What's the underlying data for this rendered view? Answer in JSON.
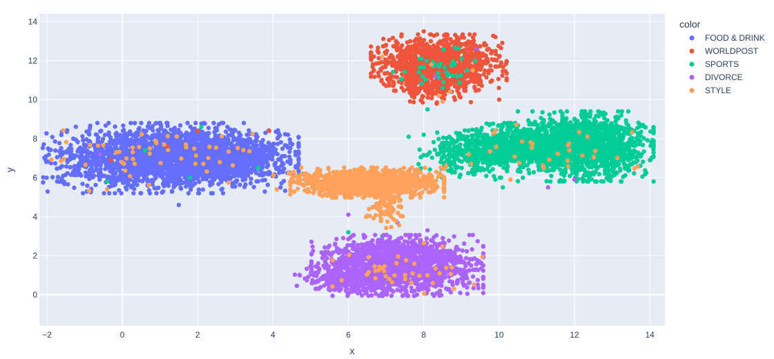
{
  "chart_data": {
    "type": "scatter",
    "title": "",
    "xlabel": "x",
    "ylabel": "y",
    "xlim": [
      -2.2,
      14.4
    ],
    "ylim": [
      -1.6,
      14.4
    ],
    "x_ticks": [
      -2,
      0,
      2,
      4,
      6,
      8,
      10,
      12,
      14
    ],
    "y_ticks": [
      0,
      2,
      4,
      6,
      8,
      10,
      12,
      14
    ],
    "grid": true,
    "legend_placement": "top-right",
    "legend_title": "color",
    "plot_bg": "#E5ECF6",
    "series": [
      {
        "name": "FOOD & DRINK",
        "color": "#636EFA",
        "clusters": [
          {
            "cx": 1.2,
            "cy": 7.0,
            "sx": 1.45,
            "sy": 0.75,
            "n": 2300
          },
          {
            "cx": 2.9,
            "cy": 7.1,
            "sx": 0.65,
            "sy": 0.55,
            "n": 500
          }
        ],
        "points": [
          [
            -1.3,
            8.0
          ],
          [
            4.5,
            5.8
          ],
          [
            4.2,
            5.5
          ],
          [
            3.8,
            8.3
          ],
          [
            1.5,
            4.6
          ],
          [
            -0.6,
            5.9
          ],
          [
            0.3,
            5.2
          ]
        ]
      },
      {
        "name": "WORLDPOST",
        "color": "#EF553B",
        "clusters": [
          {
            "cx": 8.4,
            "cy": 11.9,
            "sx": 0.75,
            "sy": 0.6,
            "n": 1100
          },
          {
            "cx": 8.2,
            "cy": 10.6,
            "sx": 0.45,
            "sy": 0.35,
            "n": 150
          }
        ],
        "points": [
          [
            6.6,
            12.3
          ],
          [
            7.0,
            12.8
          ],
          [
            9.6,
            12.8
          ],
          [
            8.0,
            13.5
          ],
          [
            10.0,
            10.0
          ],
          [
            7.2,
            10.9
          ],
          [
            3.9,
            8.4
          ],
          [
            -0.3,
            6.9
          ],
          [
            1.2,
            7.6
          ],
          [
            2.0,
            8.4
          ],
          [
            9.0,
            13.2
          ]
        ]
      },
      {
        "name": "SPORTS",
        "color": "#00CC96",
        "clusters": [
          {
            "cx": 12.3,
            "cy": 7.6,
            "sx": 0.75,
            "sy": 0.75,
            "n": 1500
          },
          {
            "cx": 10.6,
            "cy": 7.6,
            "sx": 0.8,
            "sy": 0.5,
            "n": 900
          },
          {
            "cx": 9.3,
            "cy": 7.2,
            "sx": 0.6,
            "sy": 0.5,
            "n": 300
          },
          {
            "cx": 8.4,
            "cy": 11.8,
            "sx": 0.6,
            "sy": 0.5,
            "n": 40
          }
        ],
        "points": [
          [
            7.6,
            8.1
          ],
          [
            8.0,
            8.2
          ],
          [
            10.1,
            5.5
          ],
          [
            9.9,
            5.9
          ],
          [
            6.9,
            3.0
          ],
          [
            6.8,
            2.6
          ],
          [
            6.0,
            3.2
          ],
          [
            1.8,
            6.0
          ],
          [
            -0.4,
            5.8
          ],
          [
            0.6,
            7.4
          ],
          [
            2.1,
            8.6
          ],
          [
            3.6,
            6.5
          ],
          [
            8.1,
            9.5
          ],
          [
            8.5,
            0.9
          ],
          [
            11.6,
            5.8
          ],
          [
            4.8,
            6.2
          ],
          [
            5.0,
            5.9
          ]
        ]
      },
      {
        "name": "DIVORCE",
        "color": "#AB63FA",
        "clusters": [
          {
            "cx": 7.3,
            "cy": 1.5,
            "sx": 0.95,
            "sy": 0.65,
            "n": 1700
          },
          {
            "cx": 5.9,
            "cy": 0.8,
            "sx": 0.55,
            "sy": 0.35,
            "n": 250
          }
        ],
        "points": [
          [
            5.2,
            1.6
          ],
          [
            8.8,
            1.1
          ],
          [
            6.0,
            4.1
          ],
          [
            7.3,
            3.7
          ],
          [
            11.3,
            5.5
          ],
          [
            12.0,
            5.9
          ],
          [
            9.4,
            12.6
          ],
          [
            8.3,
            11.2
          ],
          [
            -0.6,
            7.2
          ],
          [
            8.1,
            3.3
          ]
        ]
      },
      {
        "name": "STYLE",
        "color": "#FFA15A",
        "clusters": [
          {
            "cx": 6.5,
            "cy": 5.75,
            "sx": 0.85,
            "sy": 0.32,
            "n": 1500
          },
          {
            "cx": 7.0,
            "cy": 4.5,
            "sx": 0.25,
            "sy": 0.45,
            "n": 90
          },
          {
            "cx": 1.3,
            "cy": 7.0,
            "sx": 1.4,
            "sy": 0.7,
            "n": 55
          },
          {
            "cx": 7.4,
            "cy": 1.2,
            "sx": 0.9,
            "sy": 0.6,
            "n": 40
          },
          {
            "cx": 11.5,
            "cy": 7.3,
            "sx": 1.2,
            "sy": 0.8,
            "n": 30
          }
        ],
        "points": [
          [
            4.1,
            5.4
          ],
          [
            4.6,
            6.1
          ],
          [
            8.4,
            10.2
          ],
          [
            8.7,
            10.4
          ],
          [
            8.5,
            9.9
          ],
          [
            -0.4,
            5.4
          ],
          [
            9.3,
            11.5
          ],
          [
            6.9,
            12.2
          ],
          [
            8.6,
            6.6
          ],
          [
            9.2,
            7.2
          ],
          [
            10.3,
            5.9
          ],
          [
            8.8,
            0.3
          ],
          [
            8.2,
            11.8
          ]
        ]
      }
    ]
  }
}
